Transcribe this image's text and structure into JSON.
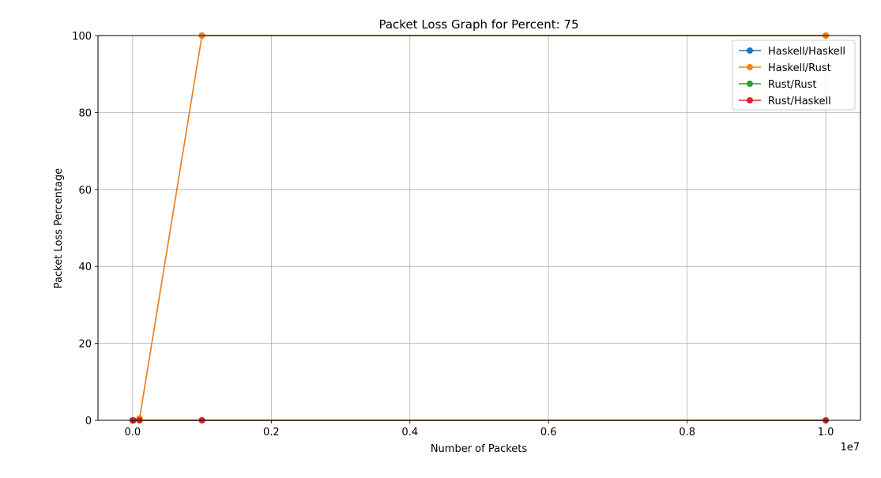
{
  "chart_data": {
    "type": "line",
    "title": "Packet Loss Graph for Percent: 75",
    "xlabel": "Number of Packets",
    "ylabel": "Packet Loss Percentage",
    "x_offset_label": "1e7",
    "x": [
      100,
      1000,
      10000,
      100000,
      1000000,
      10000000
    ],
    "xlim": [
      -500000,
      10500000
    ],
    "ylim": [
      0,
      100
    ],
    "x_ticks": [
      0,
      2000000,
      4000000,
      6000000,
      8000000,
      10000000
    ],
    "x_tick_labels": [
      "0.0",
      "0.2",
      "0.4",
      "0.6",
      "0.8",
      "1.0"
    ],
    "y_ticks": [
      0,
      20,
      40,
      60,
      80,
      100
    ],
    "y_tick_labels": [
      "0",
      "20",
      "40",
      "60",
      "80",
      "100"
    ],
    "grid": true,
    "legend_position": "top-right",
    "series": [
      {
        "name": "Haskell/Haskell",
        "color": "#1f77b4",
        "values": [
          0,
          0,
          0,
          0.5,
          100,
          100
        ]
      },
      {
        "name": "Haskell/Rust",
        "color": "#ff7f0e",
        "values": [
          0,
          0,
          0,
          0.5,
          100,
          100
        ]
      },
      {
        "name": "Rust/Rust",
        "color": "#2ca02c",
        "values": [
          0,
          0,
          0,
          0,
          0,
          0
        ]
      },
      {
        "name": "Rust/Haskell",
        "color": "#d62728",
        "values": [
          0,
          0,
          0,
          0,
          0,
          0
        ]
      }
    ]
  }
}
